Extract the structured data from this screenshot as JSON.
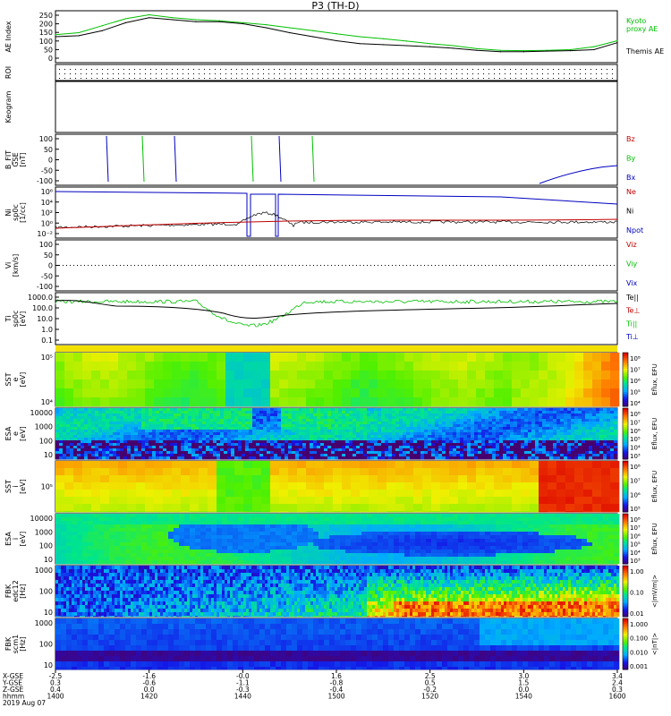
{
  "title": "P3 (TH-D)",
  "colors": {
    "green": "#00c000",
    "red": "#c00000",
    "blue": "#0000c0",
    "black": "#000000"
  },
  "chart_data": [
    {
      "id": "ae",
      "type": "line",
      "ylabel": "AE Index",
      "yticks": [
        "250",
        "200",
        "150",
        "100",
        "50",
        "0"
      ],
      "ylim": [
        0,
        260
      ],
      "legend": [
        {
          "label": "Kyoto",
          "color": "green"
        },
        {
          "label": "proxy AE",
          "color": "green"
        },
        {
          "label": "Themis AE",
          "color": "black"
        }
      ],
      "x": [
        1400,
        1405,
        1410,
        1415,
        1420,
        1425,
        1430,
        1435,
        1440,
        1445,
        1450,
        1455,
        1500,
        1505,
        1510,
        1515,
        1520,
        1525,
        1530,
        1535,
        1540,
        1545,
        1550,
        1555,
        1600
      ],
      "series": [
        {
          "name": "Kyoto proxy AE",
          "color": "green",
          "values": [
            140,
            150,
            185,
            220,
            240,
            225,
            215,
            210,
            200,
            190,
            175,
            160,
            145,
            130,
            120,
            108,
            95,
            85,
            70,
            62,
            60,
            62,
            65,
            80,
            110
          ]
        },
        {
          "name": "Themis AE",
          "color": "black",
          "values": [
            130,
            135,
            160,
            200,
            225,
            215,
            205,
            205,
            195,
            175,
            150,
            130,
            110,
            95,
            90,
            85,
            80,
            72,
            62,
            55,
            55,
            58,
            60,
            65,
            100
          ]
        }
      ]
    },
    {
      "id": "roi",
      "type": "scatter",
      "ylabel": "ROI"
    },
    {
      "id": "keogram",
      "type": "heatmap",
      "ylabel": "Keogram"
    },
    {
      "id": "bfit",
      "type": "line",
      "ylabel": "B_FIT\nGSE\n[nT]",
      "yticks": [
        "100",
        "50",
        "0",
        "-50",
        "-100"
      ],
      "ylim": [
        -100,
        100
      ],
      "legend": [
        {
          "label": "Bz",
          "color": "red"
        },
        {
          "label": "By",
          "color": "green"
        },
        {
          "label": "Bx",
          "color": "blue"
        }
      ]
    },
    {
      "id": "ni",
      "type": "line",
      "ylabel": "Ni\nsp0c\n[1/cc]",
      "yticks": [
        "10⁶",
        "10⁴",
        "10²",
        "10⁰",
        "10⁻²"
      ],
      "legend": [
        {
          "label": "Ne",
          "color": "red"
        },
        {
          "label": "Ni",
          "color": "black"
        },
        {
          "label": "Npot",
          "color": "blue"
        }
      ]
    },
    {
      "id": "vi",
      "type": "line",
      "ylabel": "Vi\n[km/s]",
      "yticks": [
        "100",
        "50",
        "0",
        "-50",
        "-100"
      ],
      "ylim": [
        -100,
        100
      ],
      "legend": [
        {
          "label": "Viz",
          "color": "red"
        },
        {
          "label": "Viy",
          "color": "green"
        },
        {
          "label": "Vix",
          "color": "blue"
        }
      ]
    },
    {
      "id": "ti",
      "type": "line",
      "ylabel": "Ti\nsp0c\n[eV]",
      "yticks": [
        "1000.0",
        "100.0",
        "10.0",
        "1.0",
        "0.1"
      ],
      "legend": [
        {
          "label": "Te||",
          "color": "black"
        },
        {
          "label": "Te⊥",
          "color": "red"
        },
        {
          "label": "Ti||",
          "color": "green"
        },
        {
          "label": "Ti⊥",
          "color": "blue"
        }
      ]
    },
    {
      "id": "sst-e",
      "type": "heatmap",
      "ylabel": "SST\ne\n[eV]",
      "yticks": [
        "10⁵",
        "10⁴"
      ],
      "cbar_ticks": [
        "10⁸",
        "10⁷",
        "10⁶",
        "10⁵",
        "10⁴"
      ],
      "cbar_label": "Eflux, EFU"
    },
    {
      "id": "esa-e",
      "type": "heatmap",
      "ylabel": "ESA\ne\n[eV]",
      "yticks": [
        "10000",
        "1000",
        "100",
        "10"
      ],
      "cbar_ticks": [
        "10⁸",
        "10⁷",
        "10⁶",
        "10⁵",
        "10⁴",
        "10³"
      ],
      "cbar_label": "Eflux, EFU"
    },
    {
      "id": "sst-i",
      "type": "heatmap",
      "ylabel": "SST\ni\n[eV]",
      "yticks": [
        "10⁵"
      ],
      "cbar_ticks": [
        "10⁸",
        "10⁷",
        "10⁶",
        "10⁵"
      ],
      "cbar_label": "Eflux, EFU"
    },
    {
      "id": "esa-i",
      "type": "heatmap",
      "ylabel": "ESA\ni\n[eV]",
      "yticks": [
        "10000",
        "1000",
        "100",
        "10"
      ],
      "cbar_ticks": [
        "10⁸",
        "10⁷",
        "10⁶",
        "10⁵",
        "10⁴",
        "10³"
      ],
      "cbar_label": "Eflux, EFU"
    },
    {
      "id": "fbk-e",
      "type": "heatmap",
      "ylabel": "FBK\nedc12\n[Hz]",
      "yticks": [
        "1000",
        "100",
        "10"
      ],
      "cbar_ticks": [
        "1.00",
        "0.10",
        "0.01"
      ],
      "cbar_label": "<|mV/m|>"
    },
    {
      "id": "fbk-b",
      "type": "heatmap",
      "ylabel": "FBK\nscm1\n[Hz]",
      "yticks": [
        "1000",
        "100",
        "10"
      ],
      "cbar_ticks": [
        "1.000",
        "0.100",
        "0.010",
        "0.001"
      ],
      "cbar_label": "<|nT|>"
    }
  ],
  "xaxis": {
    "row_labels": [
      "X-GSE",
      "Y-GSE",
      "Z-GSE",
      "hhmm"
    ],
    "date": "2019 Aug 07",
    "columns": [
      {
        "X-GSE": "-2.5",
        "Y-GSE": "0.3",
        "Z-GSE": "0.4",
        "hhmm": "1400"
      },
      {
        "X-GSE": "-1.6",
        "Y-GSE": "-0.6",
        "Z-GSE": "0.0",
        "hhmm": "1420"
      },
      {
        "X-GSE": "-0.0",
        "Y-GSE": "-1.1",
        "Z-GSE": "-0.3",
        "hhmm": "1440"
      },
      {
        "X-GSE": "1.6",
        "Y-GSE": "-0.8",
        "Z-GSE": "-0.4",
        "hhmm": "1500"
      },
      {
        "X-GSE": "2.5",
        "Y-GSE": "0.5",
        "Z-GSE": "-0.2",
        "hhmm": "1520"
      },
      {
        "X-GSE": "3.0",
        "Y-GSE": "1.5",
        "Z-GSE": "0.0",
        "hhmm": "1540"
      },
      {
        "X-GSE": "3.4",
        "Y-GSE": "2.4",
        "Z-GSE": "0.3",
        "hhmm": "1600"
      }
    ]
  }
}
